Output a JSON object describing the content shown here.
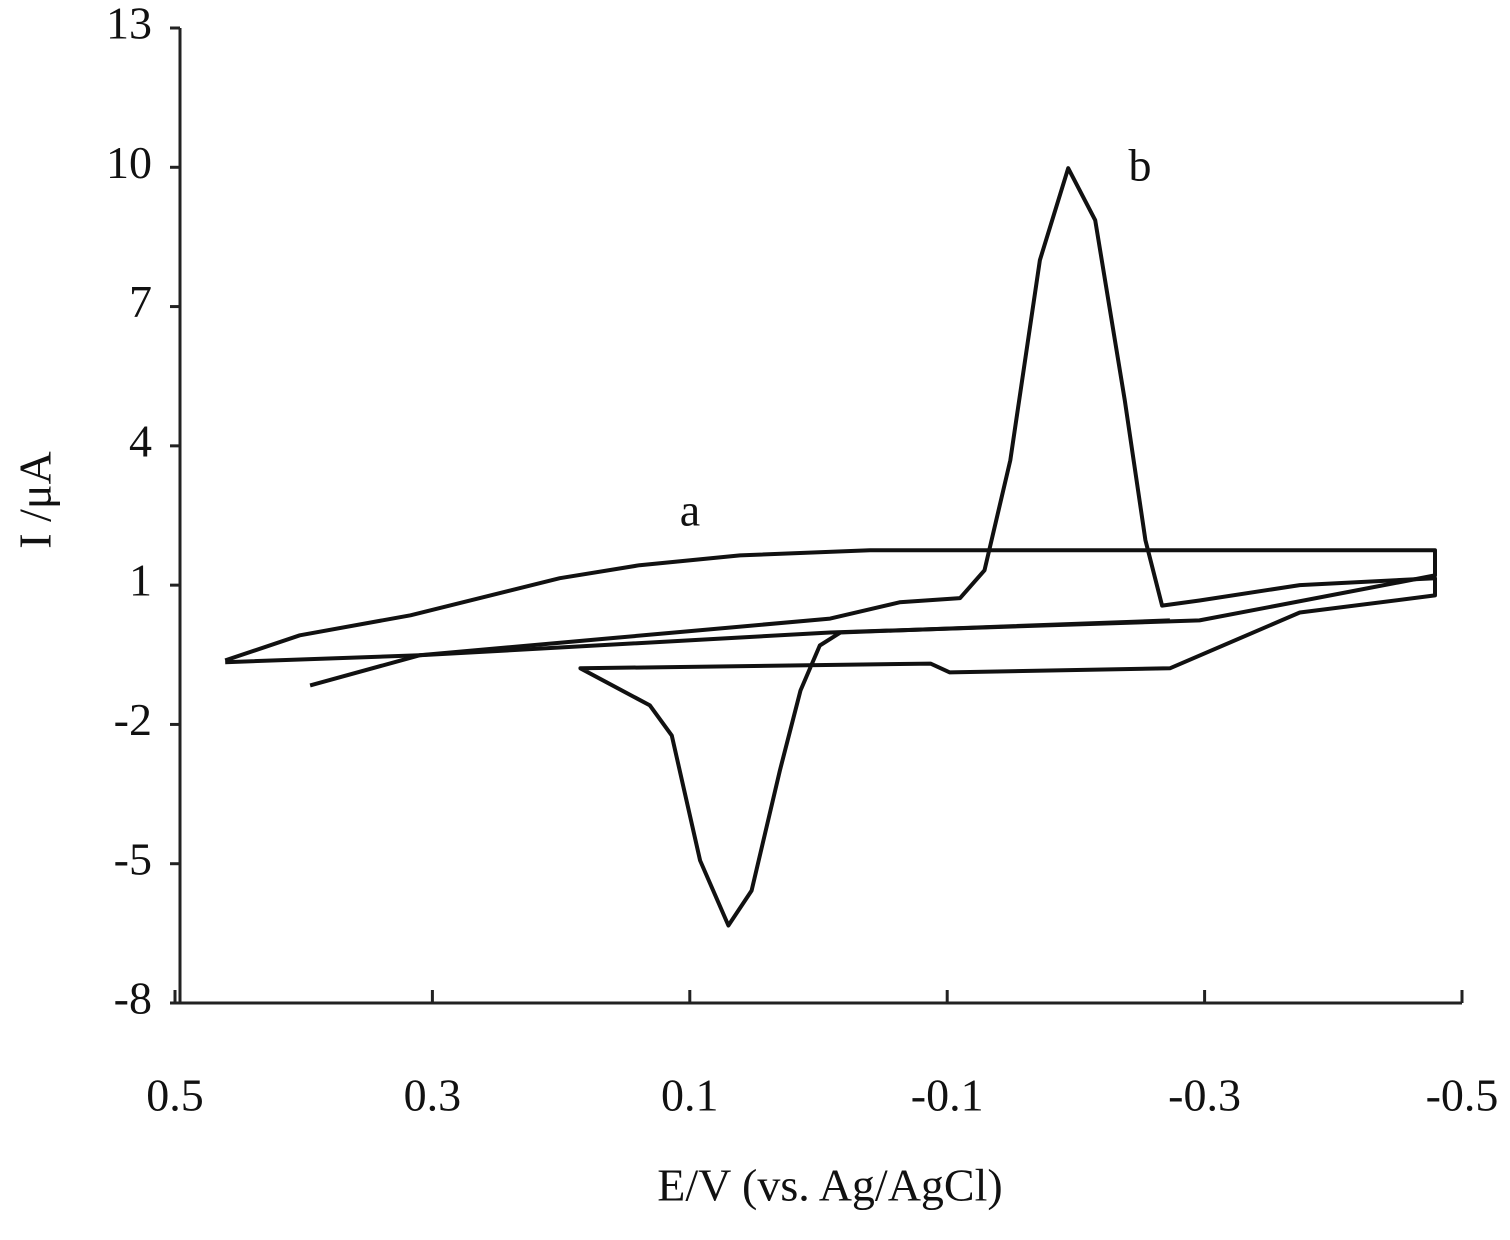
{
  "chart_data": {
    "type": "line",
    "x_label": "E/V (vs. Ag/AgCl)",
    "y_label": "I /μA",
    "xlim": [
      0.5,
      -0.5
    ],
    "xticks": [
      0.5,
      0.3,
      0.1,
      -0.1,
      -0.3,
      -0.5
    ],
    "ylim": [
      -8,
      13
    ],
    "yticks": [
      13,
      10,
      7,
      4,
      1,
      -2,
      -5,
      -8
    ],
    "series": [
      {
        "name": "a",
        "color": "#111111",
        "x": [
          0.461,
          0.403,
          0.317,
          0.201,
          0.139,
          0.061,
          -0.04,
          -0.479,
          -0.479,
          -0.296,
          -0.009,
          0.31,
          0.461
        ],
        "values": [
          -0.62,
          -0.08,
          0.35,
          1.15,
          1.43,
          1.64,
          1.75,
          1.75,
          1.21,
          0.24,
          -0.02,
          -0.51,
          -0.66
        ]
      },
      {
        "name": "b",
        "color": "#111111",
        "x": [
          0.395,
          0.31,
          -0.009,
          -0.063,
          -0.11,
          -0.129,
          -0.149,
          -0.172,
          -0.194,
          -0.215,
          -0.238,
          -0.254,
          -0.267,
          -0.296,
          -0.374,
          -0.479,
          -0.479,
          -0.374,
          -0.273,
          -0.102,
          -0.087,
          0.185,
          0.131,
          0.114,
          0.092,
          0.07,
          0.052,
          0.03,
          0.014,
          -0.001,
          -0.017,
          -0.273
        ],
        "values": [
          -1.16,
          -0.51,
          0.28,
          0.63,
          0.72,
          1.32,
          3.69,
          8.0,
          9.98,
          8.86,
          4.98,
          1.97,
          0.56,
          0.67,
          1.0,
          1.15,
          0.78,
          0.41,
          -0.79,
          -0.88,
          -0.69,
          -0.79,
          -1.59,
          -2.24,
          -4.93,
          -6.33,
          -5.58,
          -2.99,
          -1.27,
          -0.3,
          -0.02,
          0.24
        ]
      }
    ]
  }
}
